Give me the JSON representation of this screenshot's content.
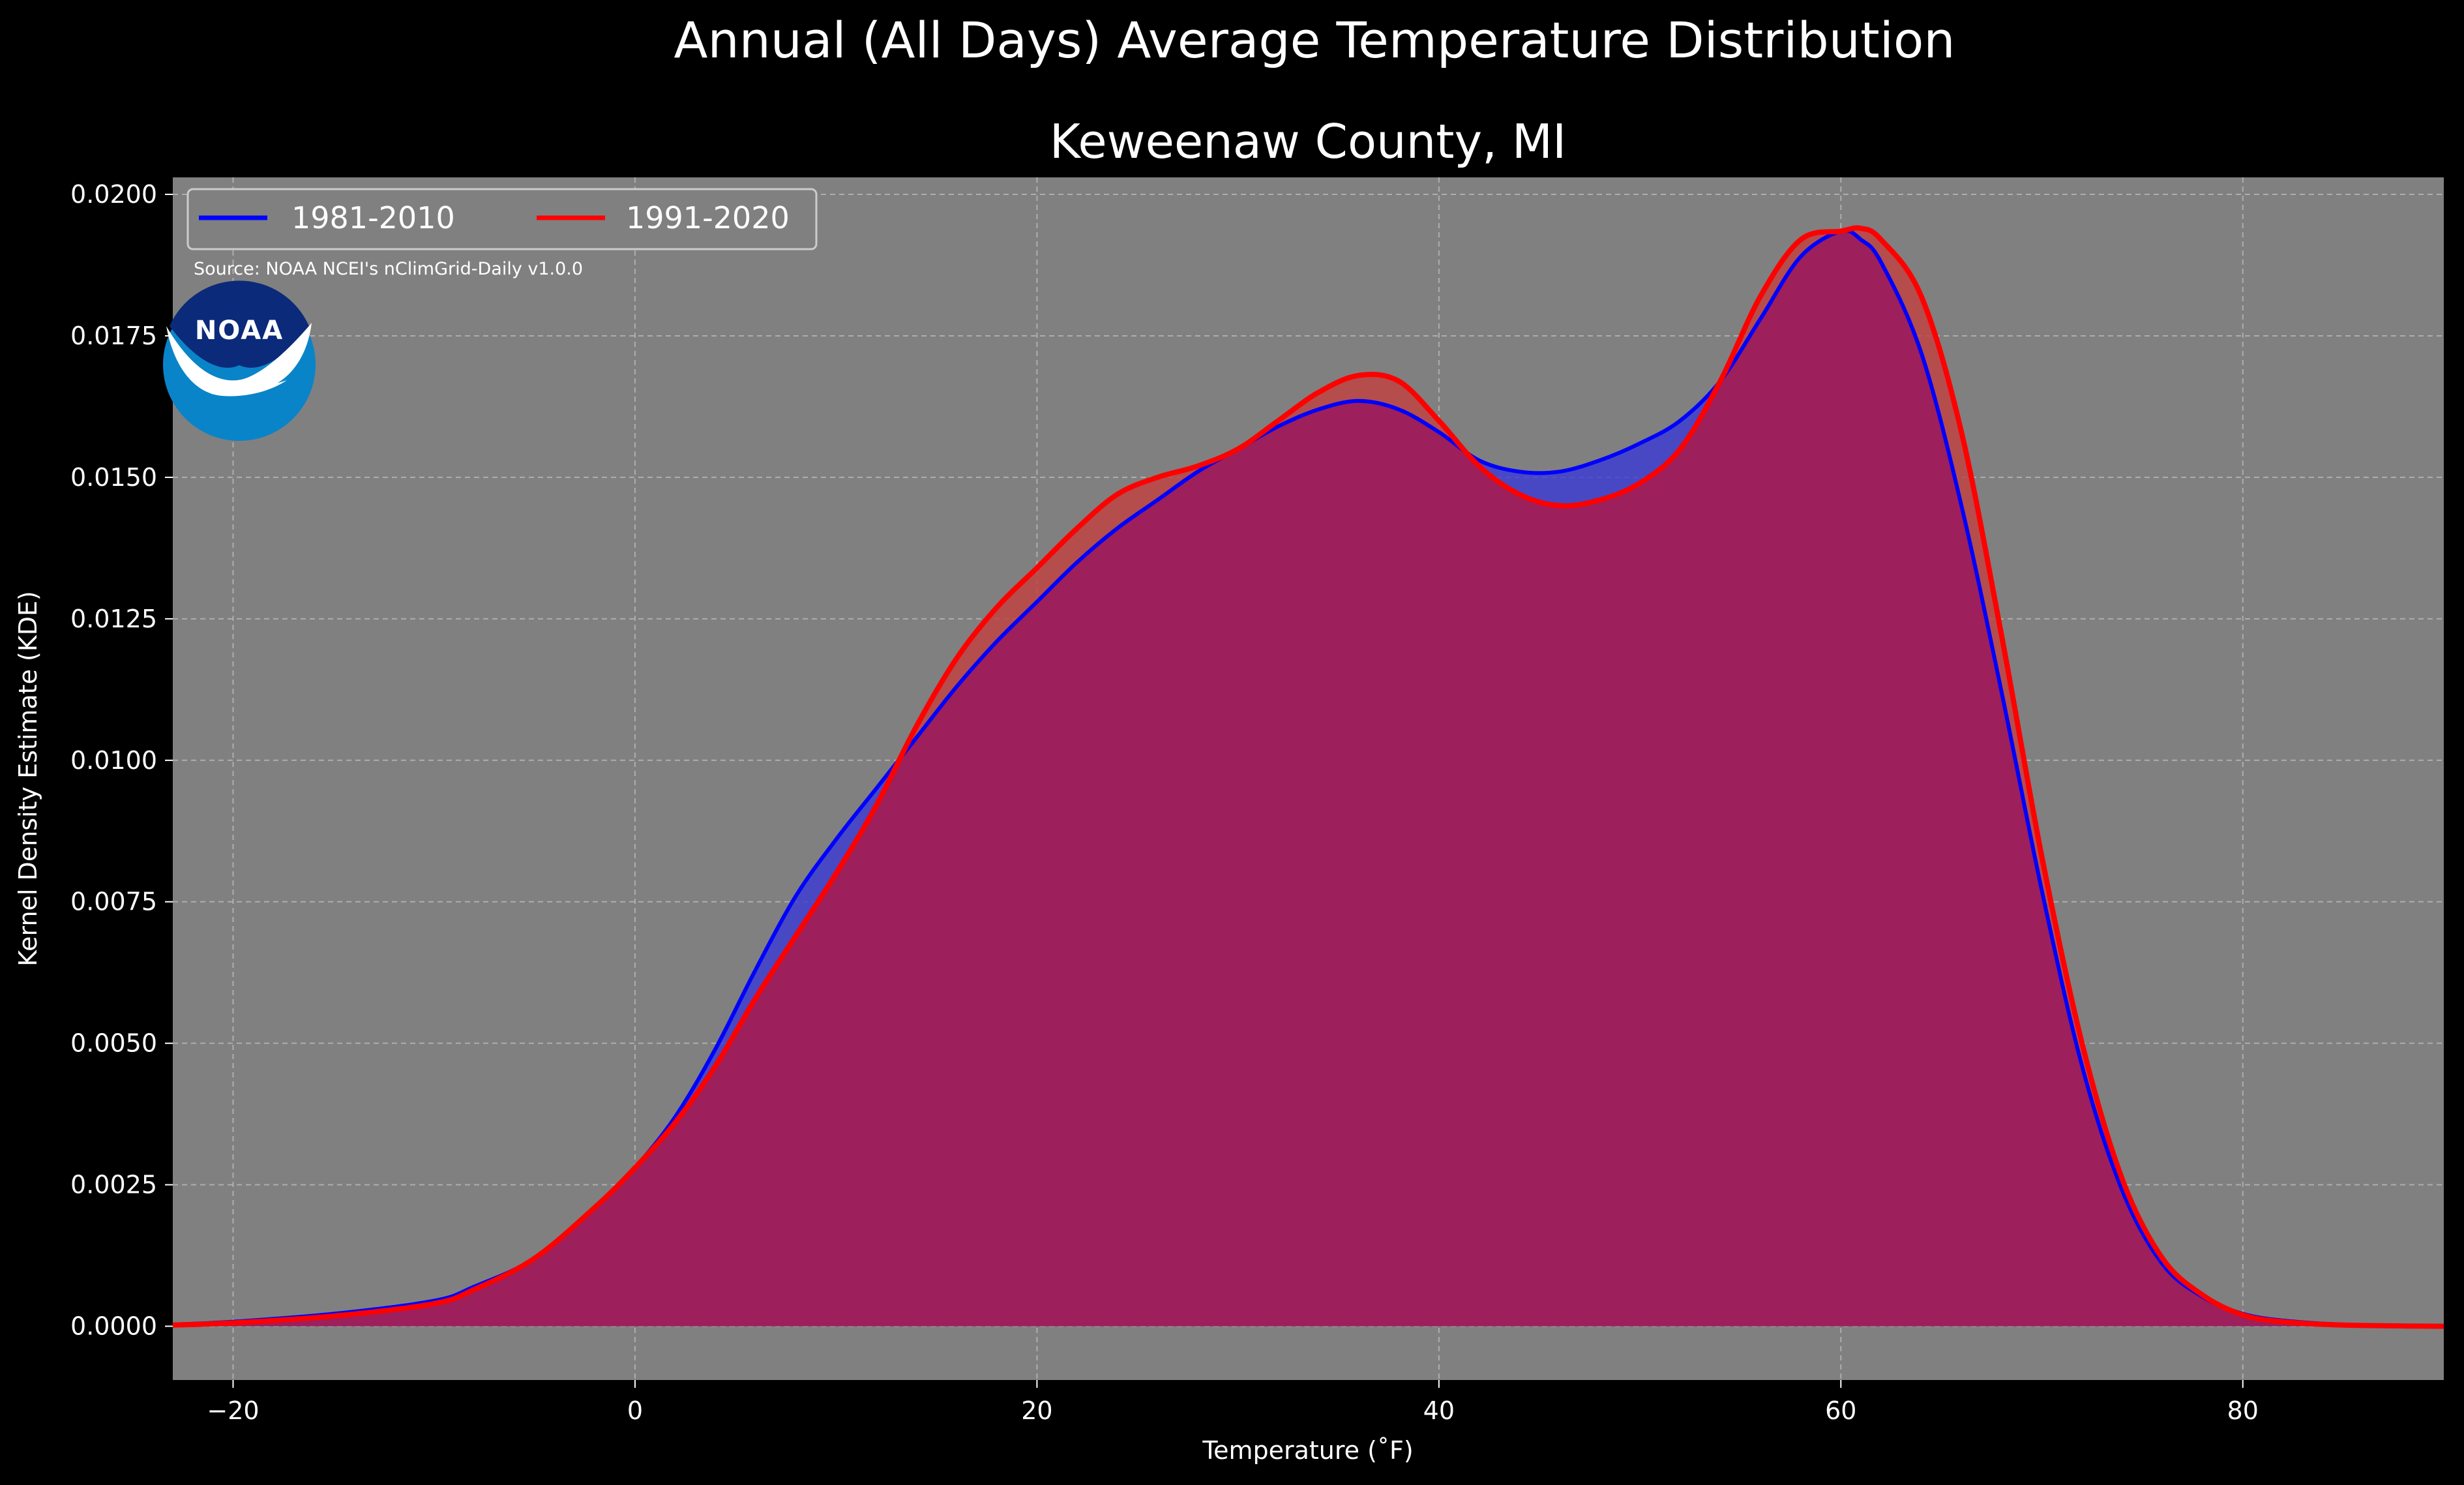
{
  "figure": {
    "suptitle": "Annual (All Days) Average Temperature Distribution",
    "subtitle": "Keweenaw County, MI",
    "source": "Source: NOAA NCEI's nClimGrid-Daily v1.0.0",
    "logo_text": "NOAA",
    "background": "#000000",
    "axes_background": "#808080"
  },
  "chart_data": {
    "type": "area",
    "title": "Keweenaw County, MI",
    "xlabel": "Temperature ($^\\circ$F)",
    "xlabel_display": "Temperature (˚F)",
    "ylabel": "Kernel Density Estimate (KDE)",
    "xlim": [
      -23,
      90
    ],
    "ylim": [
      -0.00095,
      0.0203
    ],
    "xticks": [
      -20,
      0,
      20,
      40,
      60,
      80
    ],
    "xtick_labels": [
      "−20",
      "0",
      "20",
      "40",
      "60",
      "80"
    ],
    "yticks": [
      0,
      0.0025,
      0.005,
      0.0075,
      0.01,
      0.0125,
      0.015,
      0.0175,
      0.02
    ],
    "ytick_labels": [
      "0.0000",
      "0.0025",
      "0.0050",
      "0.0075",
      "0.0100",
      "0.0125",
      "0.0150",
      "0.0175",
      "0.0200"
    ],
    "grid": true,
    "legend_position": "top-left",
    "x": [
      -23,
      -20,
      -15,
      -10,
      -8,
      -5,
      -2,
      0,
      2,
      4,
      6,
      8,
      10,
      12,
      14,
      16,
      18,
      20,
      22,
      24,
      26,
      28,
      30,
      32,
      34,
      36,
      38,
      40,
      42,
      44,
      46,
      48,
      50,
      52,
      54,
      56,
      58,
      60,
      61,
      62,
      64,
      66,
      68,
      70,
      72,
      74,
      76,
      78,
      80,
      82,
      85,
      90
    ],
    "series": [
      {
        "name": "1981-2010",
        "color": "#0000ff",
        "fill": "#3a3ad6",
        "values": [
          3e-05,
          8e-05,
          0.00022,
          0.00045,
          0.0007,
          0.0012,
          0.0021,
          0.0028,
          0.0037,
          0.0049,
          0.0063,
          0.0076,
          0.0086,
          0.0095,
          0.0104,
          0.0113,
          0.0121,
          0.0128,
          0.0135,
          0.0141,
          0.0146,
          0.0151,
          0.0155,
          0.0159,
          0.0162,
          0.01635,
          0.0162,
          0.0158,
          0.0153,
          0.0151,
          0.0151,
          0.0153,
          0.0156,
          0.016,
          0.0167,
          0.0178,
          0.0189,
          0.01935,
          0.0192,
          0.0188,
          0.0172,
          0.0145,
          0.0112,
          0.0077,
          0.0046,
          0.0024,
          0.0011,
          0.00052,
          0.00022,
          0.0001,
          3e-05,
          0.0
        ]
      },
      {
        "name": "1991-2020",
        "color": "#ff0000",
        "fill": "#c2403f",
        "values": [
          2e-05,
          6e-05,
          0.00018,
          0.0004,
          0.00065,
          0.0012,
          0.0021,
          0.0028,
          0.0036,
          0.0046,
          0.0058,
          0.0069,
          0.008,
          0.0092,
          0.0106,
          0.0118,
          0.0127,
          0.0134,
          0.0141,
          0.0147,
          0.015,
          0.0152,
          0.0155,
          0.016,
          0.0165,
          0.0168,
          0.0167,
          0.016,
          0.0152,
          0.0147,
          0.0145,
          0.0146,
          0.0149,
          0.0155,
          0.0167,
          0.0182,
          0.0192,
          0.01935,
          0.0194,
          0.0192,
          0.0182,
          0.0158,
          0.0122,
          0.0083,
          0.005,
          0.0026,
          0.0012,
          0.00055,
          0.0002,
          8e-05,
          2e-05,
          0.0
        ]
      }
    ]
  }
}
